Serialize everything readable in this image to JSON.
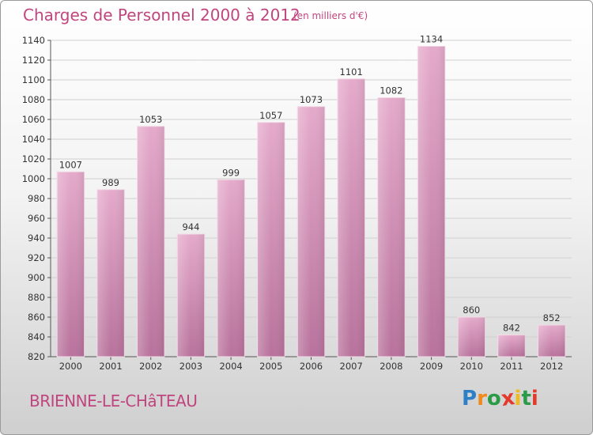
{
  "header": {
    "title": "Charges de Personnel 2000 à 2012",
    "subtitle": "(en milliers d'€)"
  },
  "footer": {
    "city": "BRIENNE-LE-CHâTEAU",
    "logo_letters": [
      "P",
      "r",
      "o",
      "x",
      "i",
      "t",
      "i"
    ],
    "logo_colors": [
      "#2f7fc6",
      "#f08a1c",
      "#2a9b46",
      "#e23b2c",
      "#f0b91c",
      "#2a9b46",
      "#e23b2c"
    ]
  },
  "chart_data": {
    "type": "bar",
    "title": "Charges de Personnel 2000 à 2012",
    "subtitle": "(en milliers d'€)",
    "categories": [
      "2000",
      "2001",
      "2002",
      "2003",
      "2004",
      "2005",
      "2006",
      "2007",
      "2008",
      "2009",
      "2010",
      "2011",
      "2012"
    ],
    "values": [
      1007,
      989,
      1053,
      944,
      999,
      1057,
      1073,
      1101,
      1082,
      1134,
      860,
      842,
      852
    ],
    "ylim": [
      820,
      1140
    ],
    "yticks": [
      820,
      840,
      860,
      880,
      900,
      920,
      940,
      960,
      980,
      1000,
      1020,
      1040,
      1060,
      1080,
      1100,
      1120,
      1140
    ],
    "grid": true,
    "colors": {
      "bar": "#d690b8",
      "bar_light": "#e5aacb",
      "bar_dark": "#b8729c",
      "text": "#c0457f",
      "grid": "#d0d0d0"
    }
  }
}
